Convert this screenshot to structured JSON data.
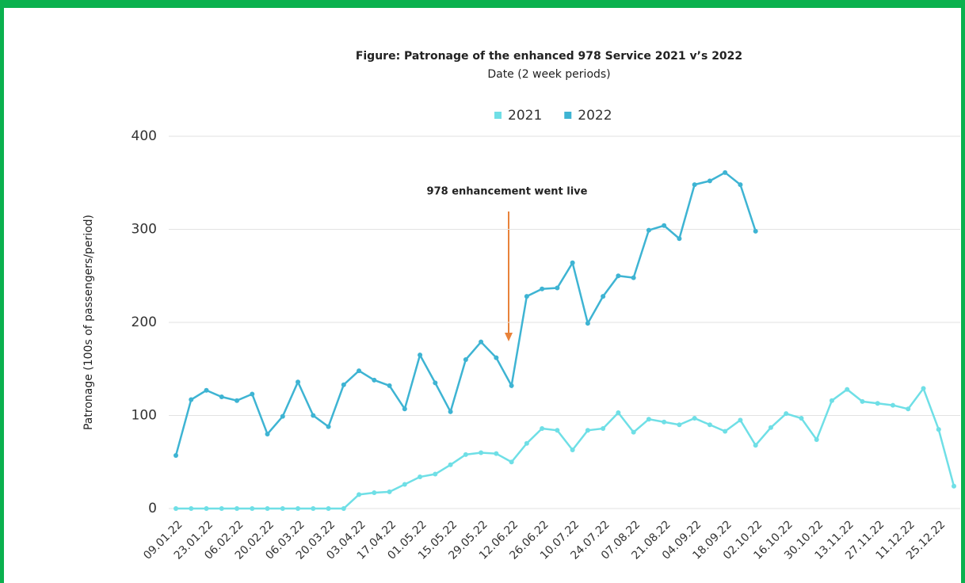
{
  "chart_data": {
    "type": "line",
    "title": "Figure: Patronage of the enhanced 978 Service 2021 v’s 2022",
    "subtitle": "Date (2 week periods)",
    "y_label": "Patronage (100s of passengers/period)",
    "annotation": "978 enhancement went live",
    "categories": [
      "09.01.22",
      null,
      "23.01.22",
      null,
      "06.02.22",
      null,
      "20.02.22",
      null,
      "06.03.22",
      null,
      "20.03.22",
      null,
      "03.04.22",
      null,
      "17.04.22",
      null,
      "01.05.22",
      null,
      "15.05.22",
      null,
      "29.05.22",
      null,
      "12.06.22",
      null,
      "26.06.22",
      null,
      "10.07.22",
      null,
      "24.07.22",
      null,
      "07.08.22",
      null,
      "21.08.22",
      null,
      "04.09.22",
      null,
      "18.09.22",
      null,
      "02.10.22",
      null,
      "16.10.22",
      null,
      "30.10.22",
      null,
      "13.11.22",
      null,
      "27.11.22",
      null,
      "11.12.22",
      null,
      "25.12.22",
      null
    ],
    "series": [
      {
        "name": "2021",
        "color": "#6fdfe6",
        "values": [
          0,
          0,
          0,
          0,
          0,
          0,
          0,
          0,
          0,
          0,
          0,
          0,
          15,
          17,
          18,
          26,
          34,
          37,
          47,
          58,
          60,
          59,
          50,
          70,
          86,
          84,
          63,
          84,
          86,
          103,
          82,
          96,
          93,
          90,
          97,
          90,
          83,
          95,
          68,
          87,
          102,
          97,
          74,
          116,
          128,
          115,
          113,
          111,
          107,
          129,
          85,
          24
        ]
      },
      {
        "name": "2022",
        "color": "#3eb4d3",
        "values": [
          57,
          117,
          127,
          120,
          116,
          123,
          80,
          99,
          136,
          100,
          88,
          133,
          148,
          138,
          132,
          107,
          165,
          135,
          104,
          160,
          179,
          162,
          132,
          228,
          236,
          237,
          264,
          199,
          228,
          250,
          248,
          299,
          304,
          290,
          348,
          352,
          361,
          348,
          298,
          null,
          null,
          null,
          null,
          null,
          null,
          null,
          null,
          null,
          null,
          null,
          null,
          null
        ]
      }
    ],
    "ylim": [
      0,
      400
    ],
    "yticks": [
      0,
      100,
      200,
      300,
      400
    ],
    "grid": true
  }
}
